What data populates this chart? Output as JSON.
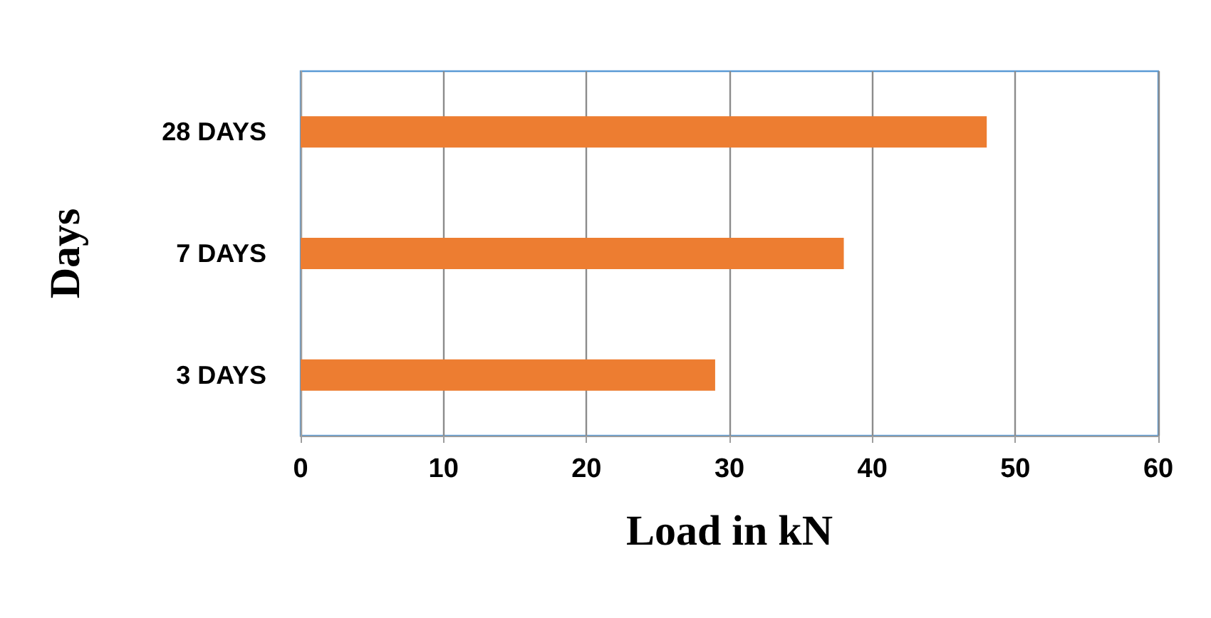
{
  "chart_data": {
    "type": "bar",
    "orientation": "horizontal",
    "xlabel": "Load in kN",
    "ylabel": "Days",
    "categories": [
      "28 DAYS",
      "7 DAYS",
      "3 DAYS"
    ],
    "values": [
      48,
      38,
      29
    ],
    "color": "#ed7d31",
    "xlim": [
      0,
      60
    ],
    "xticks": [
      0,
      10,
      20,
      30,
      40,
      50,
      60
    ],
    "grid": "x"
  }
}
